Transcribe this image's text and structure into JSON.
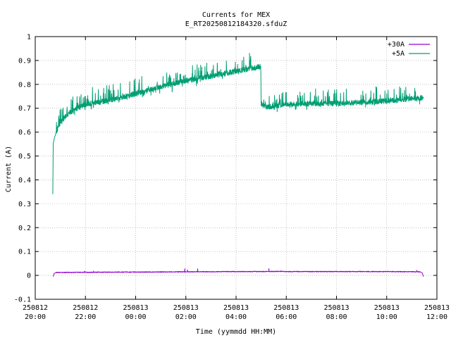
{
  "chart_data": {
    "type": "line",
    "title": "Currents for MEX",
    "subtitle": "E_RT20250812184320.sfduZ",
    "xlabel": "Time (yymmdd HH:MM)",
    "ylabel": "Current (A)",
    "ylim": [
      -0.1,
      1
    ],
    "yticks": [
      "-0.1",
      "0",
      "0.1",
      "0.2",
      "0.3",
      "0.4",
      "0.5",
      "0.6",
      "0.7",
      "0.8",
      "0.9",
      "1"
    ],
    "xlim": [
      "2025-08-12 20:00",
      "2025-08-13 12:00"
    ],
    "xticks": [
      {
        "date": "250812",
        "time": "20:00"
      },
      {
        "date": "250812",
        "time": "22:00"
      },
      {
        "date": "250813",
        "time": "00:00"
      },
      {
        "date": "250813",
        "time": "02:00"
      },
      {
        "date": "250813",
        "time": "04:00"
      },
      {
        "date": "250813",
        "time": "06:00"
      },
      {
        "date": "250813",
        "time": "08:00"
      },
      {
        "date": "250813",
        "time": "10:00"
      },
      {
        "date": "250813",
        "time": "12:00"
      }
    ],
    "grid": true,
    "legend": "top-right",
    "series": [
      {
        "name": "+30A",
        "color": "#9400d3",
        "x": [
          "2025-08-12 20:43",
          "2025-08-12 20:45",
          "2025-08-12 20:50",
          "2025-08-12 22:00",
          "2025-08-13 00:00",
          "2025-08-13 02:00",
          "2025-08-13 04:00",
          "2025-08-13 05:00",
          "2025-08-13 05:50",
          "2025-08-13 06:00",
          "2025-08-13 08:00",
          "2025-08-13 10:00",
          "2025-08-13 11:20",
          "2025-08-13 11:25",
          "2025-08-13 11:28"
        ],
        "y": [
          -0.005,
          0.008,
          0.012,
          0.013,
          0.014,
          0.015,
          0.016,
          0.016,
          0.017,
          0.016,
          0.016,
          0.016,
          0.015,
          0.01,
          -0.005
        ]
      },
      {
        "name": "+5A",
        "color": "#009e73",
        "x": [
          "2025-08-12 20:42",
          "2025-08-12 20:43",
          "2025-08-12 20:45",
          "2025-08-12 20:50",
          "2025-08-12 21:00",
          "2025-08-12 21:20",
          "2025-08-12 21:40",
          "2025-08-12 22:00",
          "2025-08-12 22:30",
          "2025-08-12 23:00",
          "2025-08-13 00:00",
          "2025-08-13 01:00",
          "2025-08-13 02:00",
          "2025-08-13 03:00",
          "2025-08-13 04:00",
          "2025-08-13 04:30",
          "2025-08-13 04:59",
          "2025-08-13 05:00",
          "2025-08-13 05:10",
          "2025-08-13 06:00",
          "2025-08-13 07:00",
          "2025-08-13 08:00",
          "2025-08-13 09:00",
          "2025-08-13 10:00",
          "2025-08-13 11:00",
          "2025-08-13 11:28"
        ],
        "y": [
          0.34,
          0.55,
          0.57,
          0.6,
          0.64,
          0.68,
          0.7,
          0.715,
          0.725,
          0.735,
          0.76,
          0.79,
          0.815,
          0.835,
          0.855,
          0.865,
          0.875,
          0.72,
          0.705,
          0.715,
          0.72,
          0.72,
          0.725,
          0.73,
          0.74,
          0.745
        ]
      }
    ]
  }
}
